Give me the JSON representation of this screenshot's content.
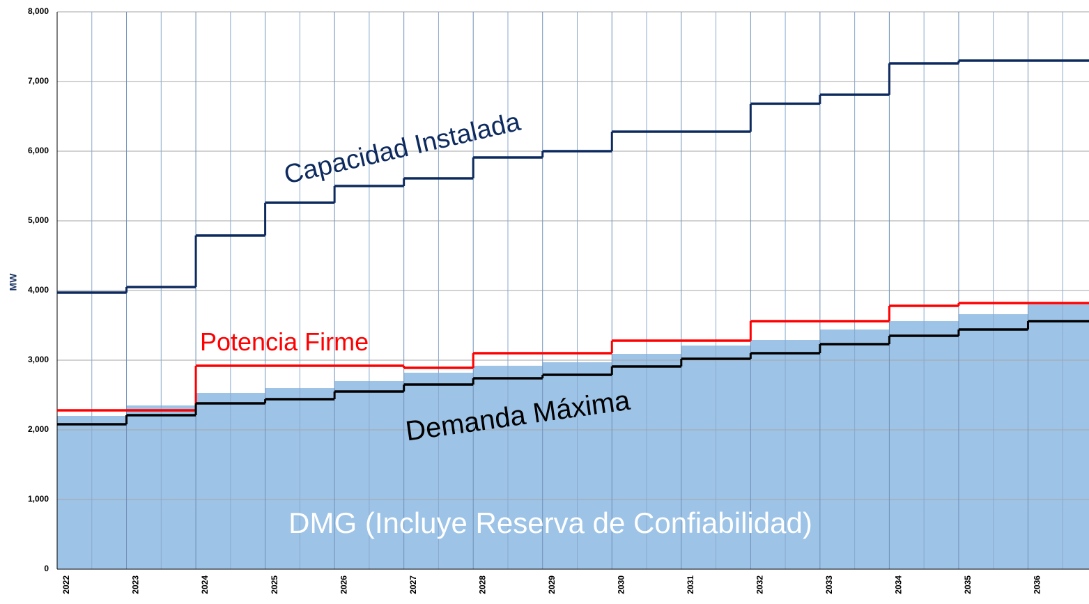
{
  "chart_data": {
    "type": "step",
    "y_label": "MW",
    "categories": [
      "2022",
      "2023",
      "2024",
      "2025",
      "2026",
      "2027",
      "2028",
      "2029",
      "2030",
      "2031",
      "2032",
      "2033",
      "2034",
      "2035",
      "2036"
    ],
    "bars": {
      "name": "DMG (Incluye Reserva de Confiabilidad)",
      "color": "#9dc3e6",
      "values": [
        2200,
        2350,
        2530,
        2600,
        2700,
        2820,
        2920,
        2970,
        3090,
        3210,
        3290,
        3440,
        3560,
        3660,
        3800
      ]
    },
    "series": [
      {
        "name": "Capacidad Instalada",
        "color": "#0d2a5e",
        "values": [
          3970,
          4050,
          4790,
          5260,
          5500,
          5610,
          5910,
          6000,
          6280,
          6280,
          6680,
          6810,
          7260,
          7300,
          7300
        ]
      },
      {
        "name": "Potencia Firme",
        "color": "#ff0000",
        "values": [
          2280,
          2280,
          2920,
          2920,
          2920,
          2890,
          3100,
          3100,
          3280,
          3280,
          3560,
          3560,
          3780,
          3820,
          3820
        ]
      },
      {
        "name": "Demanda Máxima",
        "color": "#000000",
        "values": [
          2080,
          2210,
          2380,
          2440,
          2550,
          2650,
          2740,
          2790,
          2910,
          3020,
          3100,
          3230,
          3350,
          3440,
          3560
        ]
      }
    ],
    "ylim": [
      0,
      8000
    ],
    "yticks": [
      0,
      {
        "value": 1000,
        "label": "1,000"
      },
      {
        "value": 2000,
        "label": "2,000"
      },
      {
        "value": 3000,
        "label": "3,000"
      },
      {
        "value": 4000,
        "label": "4,000"
      },
      {
        "value": 5000,
        "label": "5,000"
      },
      {
        "value": 6000,
        "label": "6,000"
      },
      {
        "value": 7000,
        "label": "7,000"
      },
      {
        "value": 8000,
        "label": "8,000"
      }
    ],
    "grid": true
  }
}
